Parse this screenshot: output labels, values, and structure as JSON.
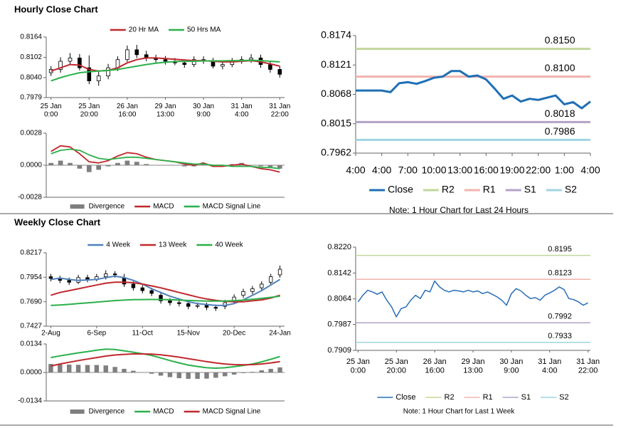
{
  "headings": [
    "Hourly Close Chart",
    "Weekly Close Chart"
  ],
  "chart_data": [
    {
      "type": "candlestick",
      "legend": "top",
      "categories": [
        "25 Jan\n0:00",
        null,
        null,
        null,
        "25 Jan\n20:00",
        null,
        null,
        null,
        "26 Jan\n16:00",
        null,
        null,
        null,
        "29 Jan\n13:00",
        null,
        null,
        null,
        "30 Jan\n9:00",
        null,
        null,
        null,
        "31 Jan\n4:00",
        null,
        null,
        null,
        "31 Jan\n22:00"
      ],
      "candles": {
        "open": [
          0.8055,
          0.8065,
          0.809,
          0.81,
          0.807,
          0.803,
          0.8045,
          0.807,
          0.8095,
          0.8125,
          0.811,
          0.81,
          0.8095,
          0.809,
          0.8085,
          0.808,
          0.8095,
          0.809,
          0.8075,
          0.808,
          0.809,
          0.8095,
          0.81,
          0.808,
          0.8065
        ],
        "high": [
          0.8075,
          0.8102,
          0.8115,
          0.8112,
          0.8108,
          0.8058,
          0.8082,
          0.8105,
          0.8138,
          0.814,
          0.8122,
          0.811,
          0.8106,
          0.81,
          0.8095,
          0.8105,
          0.8105,
          0.81,
          0.8088,
          0.81,
          0.8105,
          0.8112,
          0.811,
          0.8092,
          0.8075
        ],
        "low": [
          0.8045,
          0.8055,
          0.808,
          0.8062,
          0.802,
          0.8015,
          0.8035,
          0.806,
          0.8088,
          0.81,
          0.809,
          0.8085,
          0.808,
          0.8078,
          0.807,
          0.8072,
          0.8082,
          0.8068,
          0.8065,
          0.8072,
          0.8082,
          0.8085,
          0.807,
          0.8055,
          0.804
        ],
        "close": [
          0.8065,
          0.809,
          0.81,
          0.807,
          0.803,
          0.8045,
          0.807,
          0.8095,
          0.8125,
          0.811,
          0.81,
          0.8095,
          0.809,
          0.8085,
          0.808,
          0.8095,
          0.809,
          0.8075,
          0.808,
          0.809,
          0.8095,
          0.81,
          0.808,
          0.8065,
          0.805
        ]
      },
      "series": [
        {
          "name": "20 Hr MA",
          "color": "#c0282d",
          "values": [
            0.806,
            0.807,
            0.808,
            0.8078,
            0.8065,
            0.806,
            0.8062,
            0.807,
            0.8085,
            0.8095,
            0.81,
            0.81,
            0.8098,
            0.8096,
            0.8094,
            0.8092,
            0.8092,
            0.809,
            0.8088,
            0.8088,
            0.809,
            0.8092,
            0.8088,
            0.8082,
            0.8075
          ]
        },
        {
          "name": "50 Hrs MA",
          "color": "#2bb04a",
          "values": [
            0.803,
            0.804,
            0.8048,
            0.8055,
            0.8058,
            0.806,
            0.8062,
            0.8065,
            0.807,
            0.8075,
            0.808,
            0.8084,
            0.8087,
            0.8089,
            0.809,
            0.809,
            0.8091,
            0.8091,
            0.8091,
            0.8092,
            0.8092,
            0.8093,
            0.8092,
            0.809,
            0.8088
          ]
        }
      ],
      "ylim": [
        0.7979,
        0.8164
      ],
      "yticks": [
        0.7979,
        {
          "value": 0.804,
          "label": "0.8040"
        },
        0.8102,
        0.8164
      ]
    },
    {
      "type": "macd",
      "legend": "bottom",
      "series": [
        {
          "name": "Divergence",
          "type": "bar",
          "color": "#7f7f7f",
          "values": [
            0.0002,
            0.0004,
            0.0002,
            -0.0003,
            -0.0006,
            -0.0004,
            -0.0001,
            0.0002,
            0.0004,
            0.0003,
            0.0001,
            0.0,
            0.0,
            0.0,
            -0.0001,
            -0.0001,
            0.0001,
            -0.0001,
            -0.0001,
            0.0001,
            0.0002,
            0.0,
            -0.0001,
            -0.0002,
            -0.0003
          ]
        },
        {
          "name": "MACD",
          "type": "line",
          "color": "#c0282d",
          "values": [
            0.0012,
            0.0017,
            0.0016,
            0.001,
            0.0003,
            0.0002,
            0.0004,
            0.0008,
            0.0011,
            0.001,
            0.0007,
            0.0005,
            0.0004,
            0.0003,
            0.0001,
            0.0,
            0.0002,
            -0.0001,
            -0.0001,
            0.0,
            0.0001,
            -0.0001,
            -0.0003,
            -0.0004,
            -0.0006
          ]
        },
        {
          "name": "MACD Signal Line",
          "type": "line",
          "color": "#2bb04a",
          "values": [
            0.001,
            0.0013,
            0.0014,
            0.0013,
            0.0009,
            0.0006,
            0.0005,
            0.0006,
            0.0007,
            0.0007,
            0.0006,
            0.0005,
            0.0004,
            0.0003,
            0.0002,
            0.0001,
            0.0001,
            0.0,
            0.0,
            -0.0001,
            -0.0001,
            -0.0001,
            -0.0002,
            -0.0002,
            -0.0003
          ]
        }
      ],
      "ylim": [
        -0.0028,
        0.0028
      ],
      "yticks": [
        -0.0028,
        {
          "value": 0,
          "label": "0.0000"
        },
        0.0028
      ]
    },
    {
      "type": "line",
      "legend": "bottom",
      "x": [
        0,
        1,
        2,
        3,
        4,
        5,
        6,
        7,
        8,
        9,
        10,
        11,
        12,
        13,
        14,
        15,
        16,
        17,
        18,
        19,
        20,
        21,
        22,
        23,
        24,
        25,
        26,
        27
      ],
      "xlim": [
        0,
        27
      ],
      "xticks": [
        {
          "value": 0,
          "label": "4:00"
        },
        {
          "value": 3,
          "label": "4:00"
        },
        {
          "value": 6,
          "label": "7:00"
        },
        {
          "value": 9,
          "label": "10:00"
        },
        {
          "value": 12,
          "label": "13:00"
        },
        {
          "value": 15,
          "label": "16:00"
        },
        {
          "value": 18,
          "label": "19:00"
        },
        {
          "value": 21,
          "label": "22:00"
        },
        {
          "value": 24,
          "label": "1:00"
        },
        {
          "value": 27,
          "label": "4:00"
        }
      ],
      "series": [
        {
          "name": "Close",
          "color": "#1f6fb5",
          "values": [
            0.8075,
            0.8075,
            0.8075,
            0.8075,
            0.8072,
            0.8088,
            0.809,
            0.8087,
            0.8092,
            0.8098,
            0.81,
            0.811,
            0.811,
            0.81,
            0.8102,
            0.8095,
            0.8078,
            0.806,
            0.8066,
            0.8055,
            0.806,
            0.8058,
            0.8062,
            0.8066,
            0.805,
            0.8054,
            0.8043,
            0.8055
          ]
        }
      ],
      "levels": [
        {
          "name": "R2",
          "color": "#c3d69b",
          "value": 0.815,
          "value_label": "0.8150"
        },
        {
          "name": "R1",
          "color": "#f2b3ae",
          "value": 0.81,
          "value_label": "0.8100"
        },
        {
          "name": "S1",
          "color": "#b3a2c7",
          "value": 0.8018
        },
        {
          "name": "S2",
          "color": "#9fd4e3",
          "value": 0.7986
        }
      ],
      "ylim": [
        0.7962,
        0.8174
      ],
      "yticks": [
        0.7962,
        0.8015,
        0.8068,
        0.8121,
        0.8174
      ],
      "note": "Note: 1 Hour Chart for Last 24 Hours"
    },
    {
      "type": "candlestick",
      "legend": "top",
      "categories": [
        "2-Aug",
        null,
        null,
        null,
        null,
        "6-Sep",
        null,
        null,
        null,
        null,
        "11-Oct",
        null,
        null,
        null,
        null,
        "15-Nov",
        null,
        null,
        null,
        null,
        "20-Dec",
        null,
        null,
        null,
        null,
        "24-Jan"
      ],
      "candles": {
        "open": [
          0.796,
          0.794,
          0.792,
          0.79,
          0.795,
          0.793,
          0.796,
          0.799,
          0.795,
          0.788,
          0.784,
          0.781,
          0.776,
          0.77,
          0.768,
          0.767,
          0.764,
          0.765,
          0.763,
          0.764,
          0.77,
          0.776,
          0.78,
          0.784,
          0.79,
          0.798
        ],
        "high": [
          0.799,
          0.797,
          0.795,
          0.798,
          0.798,
          0.799,
          0.803,
          0.802,
          0.799,
          0.791,
          0.787,
          0.784,
          0.779,
          0.773,
          0.771,
          0.77,
          0.768,
          0.768,
          0.766,
          0.771,
          0.777,
          0.783,
          0.786,
          0.791,
          0.799,
          0.808
        ],
        "low": [
          0.791,
          0.789,
          0.787,
          0.788,
          0.79,
          0.791,
          0.793,
          0.795,
          0.785,
          0.781,
          0.778,
          0.775,
          0.767,
          0.765,
          0.764,
          0.761,
          0.762,
          0.76,
          0.759,
          0.761,
          0.767,
          0.773,
          0.777,
          0.781,
          0.787,
          0.795
        ],
        "close": [
          0.794,
          0.792,
          0.79,
          0.795,
          0.793,
          0.796,
          0.799,
          0.798,
          0.788,
          0.784,
          0.781,
          0.778,
          0.77,
          0.768,
          0.767,
          0.764,
          0.765,
          0.763,
          0.762,
          0.768,
          0.774,
          0.78,
          0.783,
          0.788,
          0.796,
          0.804
        ]
      },
      "series": [
        {
          "name": "4 Week",
          "color": "#4f81bd",
          "values": [
            0.793,
            0.7945,
            0.793,
            0.792,
            0.7925,
            0.793,
            0.795,
            0.7965,
            0.795,
            0.792,
            0.788,
            0.783,
            0.779,
            0.775,
            0.772,
            0.769,
            0.767,
            0.766,
            0.765,
            0.765,
            0.767,
            0.771,
            0.776,
            0.781,
            0.787,
            0.793
          ]
        },
        {
          "name": "13 Week",
          "color": "#c0282d",
          "values": [
            0.776,
            0.779,
            0.781,
            0.783,
            0.785,
            0.787,
            0.789,
            0.79,
            0.79,
            0.7895,
            0.788,
            0.786,
            0.784,
            0.7815,
            0.779,
            0.7765,
            0.774,
            0.772,
            0.7705,
            0.7695,
            0.769,
            0.769,
            0.77,
            0.771,
            0.773,
            0.776
          ]
        },
        {
          "name": "40 Week",
          "color": "#2bb04a",
          "values": [
            0.765,
            0.7655,
            0.7662,
            0.767,
            0.7678,
            0.7686,
            0.7695,
            0.7702,
            0.7708,
            0.7712,
            0.7714,
            0.7715,
            0.7714,
            0.7712,
            0.7708,
            0.7704,
            0.77,
            0.7698,
            0.7697,
            0.7698,
            0.7702,
            0.7708,
            0.7716,
            0.7726,
            0.7738,
            0.775
          ]
        }
      ],
      "ylim": [
        0.7427,
        0.8217
      ],
      "yticks": [
        0.7427,
        {
          "value": 0.769,
          "label": "0.7690"
        },
        0.7954,
        0.8217
      ]
    },
    {
      "type": "macd",
      "legend": "bottom",
      "series": [
        {
          "name": "Divergence",
          "type": "bar",
          "color": "#7f7f7f",
          "values": [
            0.004,
            0.0038,
            0.0037,
            0.0036,
            0.0035,
            0.0035,
            0.0033,
            0.0026,
            0.0017,
            0.0008,
            0.0001,
            -0.0006,
            -0.0015,
            -0.0022,
            -0.0027,
            -0.003,
            -0.003,
            -0.0029,
            -0.0025,
            -0.0018,
            -0.001,
            -0.0003,
            0.0003,
            0.001,
            0.0017,
            0.0024
          ]
        },
        {
          "name": "MACD",
          "type": "line",
          "color": "#2bb04a",
          "values": [
            0.007,
            0.0078,
            0.0085,
            0.0092,
            0.0098,
            0.0105,
            0.011,
            0.0108,
            0.0102,
            0.0095,
            0.0088,
            0.008,
            0.0068,
            0.0056,
            0.0045,
            0.0035,
            0.0028,
            0.0022,
            0.002,
            0.0022,
            0.0027,
            0.0033,
            0.004,
            0.005,
            0.0062,
            0.0075
          ]
        },
        {
          "name": "MACD Signal Line",
          "type": "line",
          "color": "#c0282d",
          "values": [
            0.003,
            0.004,
            0.0048,
            0.0056,
            0.0063,
            0.007,
            0.0077,
            0.0082,
            0.0085,
            0.0087,
            0.0087,
            0.0086,
            0.0083,
            0.0078,
            0.0072,
            0.0065,
            0.0058,
            0.0051,
            0.0045,
            0.004,
            0.0037,
            0.0036,
            0.0037,
            0.004,
            0.0045,
            0.0051
          ]
        }
      ],
      "ylim": [
        -0.0134,
        0.0134
      ],
      "yticks": [
        -0.0134,
        {
          "value": 0,
          "label": "0.0000"
        },
        0.0134
      ]
    },
    {
      "type": "line",
      "legend": "bottom",
      "categories": [
        "25 Jan\n0:00",
        null,
        null,
        null,
        null,
        null,
        null,
        null,
        "25 Jan\n20:00",
        null,
        null,
        null,
        null,
        null,
        null,
        null,
        "26 Jan\n16:00",
        null,
        null,
        null,
        null,
        null,
        null,
        null,
        "29 Jan\n13:00",
        null,
        null,
        null,
        null,
        null,
        null,
        null,
        "30 Jan\n9:00",
        null,
        null,
        null,
        null,
        null,
        null,
        null,
        "31 Jan\n4:00",
        null,
        null,
        null,
        null,
        null,
        null,
        null,
        "31 Jan\n22:00"
      ],
      "series": [
        {
          "name": "Close",
          "color": "#2a6db5",
          "values": [
            0.8055,
            0.8075,
            0.809,
            0.8085,
            0.8078,
            0.8085,
            0.806,
            0.804,
            0.801,
            0.8035,
            0.804,
            0.806,
            0.8075,
            0.8065,
            0.809,
            0.8085,
            0.8118,
            0.81,
            0.809,
            0.8085,
            0.809,
            0.8088,
            0.8085,
            0.809,
            0.8085,
            0.8088,
            0.808,
            0.8085,
            0.8078,
            0.807,
            0.806,
            0.8045,
            0.808,
            0.8095,
            0.8088,
            0.8075,
            0.8065,
            0.8068,
            0.806,
            0.8075,
            0.8082,
            0.809,
            0.81,
            0.8092,
            0.8065,
            0.8062,
            0.8055,
            0.8045,
            0.8052
          ]
        }
      ],
      "levels": [
        {
          "name": "R2",
          "color": "#c3d69b",
          "value": 0.8195
        },
        {
          "name": "R1",
          "color": "#f2b3ae",
          "value": 0.8123
        },
        {
          "name": "S1",
          "color": "#b3a2c7",
          "value": 0.7992
        },
        {
          "name": "S2",
          "color": "#9fd4e3",
          "value": 0.7933
        }
      ],
      "ylim": [
        0.7909,
        0.822
      ],
      "yticks": [
        0.7909,
        0.7987,
        0.8064,
        0.8142,
        {
          "value": 0.822,
          "label": "0.8220"
        }
      ],
      "note": "Note: 1 Hour Chart for Last 1 Week"
    }
  ]
}
